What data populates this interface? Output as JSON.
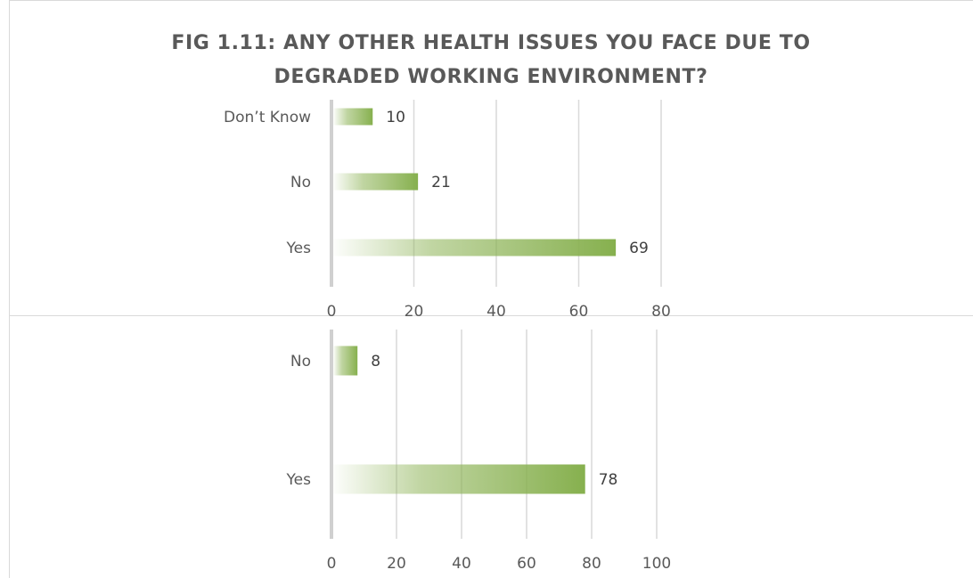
{
  "chart_data": [
    {
      "type": "bar",
      "orientation": "horizontal",
      "title": "FIG 1.11:  ANY OTHER HEALTH ISSUES YOU FACE DUE TO DEGRADED WORKING ENVIRONMENT?",
      "title_lines": [
        "FIG 1.11:  ANY OTHER HEALTH ISSUES YOU FACE DUE TO",
        "DEGRADED WORKING ENVIRONMENT?"
      ],
      "categories": [
        "Don’t Know",
        "No",
        "Yes"
      ],
      "values": [
        10,
        21,
        69
      ],
      "xlim": [
        0,
        80
      ],
      "xticks": [
        0,
        20,
        40,
        60,
        80
      ],
      "grid": true,
      "bar_color": "#8db356",
      "data_labels": true
    },
    {
      "type": "bar",
      "orientation": "horizontal",
      "title": "",
      "categories": [
        "No",
        "Yes"
      ],
      "values": [
        8,
        78
      ],
      "xlim": [
        0,
        100
      ],
      "xticks": [
        0,
        20,
        40,
        60,
        80,
        100
      ],
      "grid": true,
      "bar_color": "#8db356",
      "data_labels": true
    }
  ]
}
